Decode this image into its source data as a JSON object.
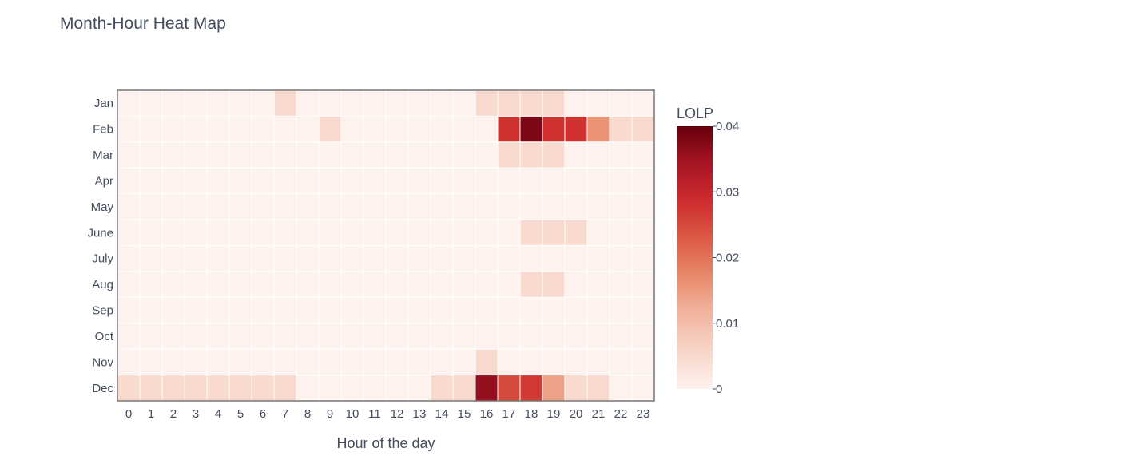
{
  "chart_data": {
    "type": "heatmap",
    "title": "Month-Hour Heat Map",
    "xlabel": "Hour of the day",
    "ylabel": "",
    "x": [
      "0",
      "1",
      "2",
      "3",
      "4",
      "5",
      "6",
      "7",
      "8",
      "9",
      "10",
      "11",
      "12",
      "13",
      "14",
      "15",
      "16",
      "17",
      "18",
      "19",
      "20",
      "21",
      "22",
      "23"
    ],
    "y": [
      "Jan",
      "Feb",
      "Mar",
      "Apr",
      "May",
      "June",
      "July",
      "Aug",
      "Sep",
      "Oct",
      "Nov",
      "Dec"
    ],
    "z": [
      [
        0,
        0,
        0,
        0,
        0,
        0,
        0,
        0.005,
        0,
        0,
        0,
        0,
        0,
        0,
        0,
        0,
        0.005,
        0.005,
        0.005,
        0.005,
        0,
        0,
        0,
        0
      ],
      [
        0,
        0,
        0,
        0,
        0,
        0,
        0,
        0,
        0,
        0.005,
        0,
        0,
        0,
        0,
        0,
        0,
        0,
        0.028,
        0.038,
        0.028,
        0.028,
        0.016,
        0.005,
        0.005
      ],
      [
        0,
        0,
        0,
        0,
        0,
        0,
        0,
        0,
        0,
        0,
        0,
        0,
        0,
        0,
        0,
        0,
        0,
        0.005,
        0.005,
        0.005,
        0,
        0,
        0,
        0
      ],
      [
        0,
        0,
        0,
        0,
        0,
        0,
        0,
        0,
        0,
        0,
        0,
        0,
        0,
        0,
        0,
        0,
        0,
        0,
        0,
        0,
        0,
        0,
        0,
        0
      ],
      [
        0,
        0,
        0,
        0,
        0,
        0,
        0,
        0,
        0,
        0,
        0,
        0,
        0,
        0,
        0,
        0,
        0,
        0,
        0,
        0,
        0,
        0,
        0,
        0
      ],
      [
        0,
        0,
        0,
        0,
        0,
        0,
        0,
        0,
        0,
        0,
        0,
        0,
        0,
        0,
        0,
        0,
        0,
        0,
        0.005,
        0.005,
        0.005,
        0,
        0,
        0
      ],
      [
        0,
        0,
        0,
        0,
        0,
        0,
        0,
        0,
        0,
        0,
        0,
        0,
        0,
        0,
        0,
        0,
        0,
        0,
        0,
        0,
        0,
        0,
        0,
        0
      ],
      [
        0,
        0,
        0,
        0,
        0,
        0,
        0,
        0,
        0,
        0,
        0,
        0,
        0,
        0,
        0,
        0,
        0,
        0,
        0.005,
        0.005,
        0,
        0,
        0,
        0
      ],
      [
        0,
        0,
        0,
        0,
        0,
        0,
        0,
        0,
        0,
        0,
        0,
        0,
        0,
        0,
        0,
        0,
        0,
        0,
        0,
        0,
        0,
        0,
        0,
        0
      ],
      [
        0,
        0,
        0,
        0,
        0,
        0,
        0,
        0,
        0,
        0,
        0,
        0,
        0,
        0,
        0,
        0,
        0,
        0,
        0,
        0,
        0,
        0,
        0,
        0
      ],
      [
        0,
        0,
        0,
        0,
        0,
        0,
        0,
        0,
        0,
        0,
        0,
        0,
        0,
        0,
        0,
        0,
        0.005,
        0,
        0,
        0,
        0,
        0,
        0,
        0
      ],
      [
        0.005,
        0.005,
        0.005,
        0.005,
        0.005,
        0.005,
        0.005,
        0.005,
        0,
        0,
        0,
        0,
        0,
        0,
        0.005,
        0.005,
        0.036,
        0.025,
        0.027,
        0.014,
        0.005,
        0.005,
        0,
        0
      ]
    ],
    "zmin": 0,
    "zmax": 0.04,
    "colorbar": {
      "title": "LOLP",
      "tickvals": [
        0,
        0.01,
        0.02,
        0.03,
        0.04
      ],
      "ticktext": [
        "0",
        "0.01",
        "0.02",
        "0.03",
        "0.04"
      ]
    },
    "colorscale": [
      "#fdf2ee",
      "#f8d6c9",
      "#f1b59f",
      "#e98b6c",
      "#dc5a45",
      "#cd2d2f",
      "#a71524",
      "#67000d"
    ],
    "grid": false
  }
}
